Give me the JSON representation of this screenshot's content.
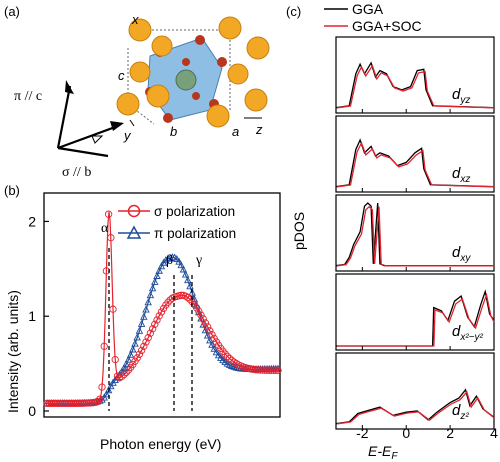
{
  "panel_labels": {
    "a": "(a)",
    "b": "(b)",
    "c": "(c)"
  },
  "colors": {
    "red": "#e4232e",
    "blue": "#1f4d9c",
    "gga": "#000000",
    "gga_soc": "#e4232e",
    "atom_large": "#f2a825",
    "atom_small": "#b8351e",
    "octahedron": "#6aa8dc",
    "center_atom": "#78a07a"
  },
  "structure": {
    "axes": {
      "x": "x",
      "y": "y",
      "z": "z",
      "a": "a",
      "b": "b",
      "c": "c"
    },
    "polarization_pi": "π // c",
    "polarization_sigma": "σ // b"
  },
  "spectrum_chart": {
    "type": "line",
    "xlabel": "Photon energy (eV)",
    "ylabel": "Intensity (arb. units)",
    "ylim": [
      0,
      2.3
    ],
    "yticks": [
      "0",
      "1",
      "2"
    ],
    "annotations": [
      "α",
      "β",
      "γ"
    ],
    "series": [
      {
        "name": "σ polarization",
        "marker": "circle"
      },
      {
        "name": "π polarization",
        "marker": "triangle"
      }
    ]
  },
  "pdos_chart": {
    "type": "line",
    "xlabel": "E-E_F",
    "ylabel": "pDOS",
    "xlim": [
      -3.2,
      4.0
    ],
    "xticks": [
      "-2",
      "0",
      "2",
      "4"
    ],
    "legend": [
      "GGA",
      "GGA+SOC"
    ],
    "panels": [
      {
        "orbital": "d",
        "sub": "yz"
      },
      {
        "orbital": "d",
        "sub": "xz"
      },
      {
        "orbital": "d",
        "sub": "xy"
      },
      {
        "orbital": "d",
        "sub": "x²−y²"
      },
      {
        "orbital": "d",
        "sub": "z²"
      }
    ]
  }
}
